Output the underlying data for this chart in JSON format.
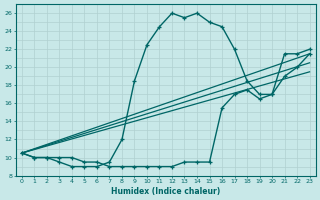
{
  "xlabel": "Humidex (Indice chaleur)",
  "bg_color": "#c8e8e8",
  "grid_color": "#b0d0d0",
  "line_color": "#006666",
  "xlim": [
    -0.5,
    23.5
  ],
  "ylim": [
    8,
    27
  ],
  "xticks": [
    0,
    1,
    2,
    3,
    4,
    5,
    6,
    7,
    8,
    9,
    10,
    11,
    12,
    13,
    14,
    15,
    16,
    17,
    18,
    19,
    20,
    21,
    22,
    23
  ],
  "yticks": [
    8,
    10,
    12,
    14,
    16,
    18,
    20,
    22,
    24,
    26
  ],
  "curve1_x": [
    0,
    1,
    2,
    3,
    4,
    5,
    6,
    7,
    8,
    9,
    10,
    11,
    12,
    13,
    14,
    15,
    16,
    17,
    18,
    19,
    20,
    21,
    22,
    23
  ],
  "curve1_y": [
    10.5,
    10,
    10,
    9.5,
    9,
    9,
    9,
    9.5,
    12,
    18.5,
    22.5,
    24.5,
    26,
    25.5,
    26,
    25,
    24.5,
    22,
    18.5,
    17,
    17,
    21.5,
    21.5,
    22
  ],
  "curve2_x": [
    0,
    1,
    2,
    3,
    4,
    5,
    6,
    7,
    8,
    9,
    10,
    11,
    12,
    13,
    14,
    15,
    16,
    17,
    18,
    19,
    20,
    21,
    22,
    23
  ],
  "curve2_y": [
    10.5,
    10,
    10,
    10,
    10,
    9.5,
    9.5,
    9,
    9,
    9,
    9,
    9,
    9,
    9.5,
    9.5,
    9.5,
    15.5,
    17,
    17.5,
    16.5,
    17,
    19,
    20,
    21.5
  ],
  "line1_x": [
    0,
    23
  ],
  "line1_y": [
    10.5,
    21.5
  ],
  "line2_x": [
    0,
    23
  ],
  "line2_y": [
    10.5,
    20.5
  ],
  "line3_x": [
    0,
    23
  ],
  "line3_y": [
    10.5,
    19.5
  ]
}
